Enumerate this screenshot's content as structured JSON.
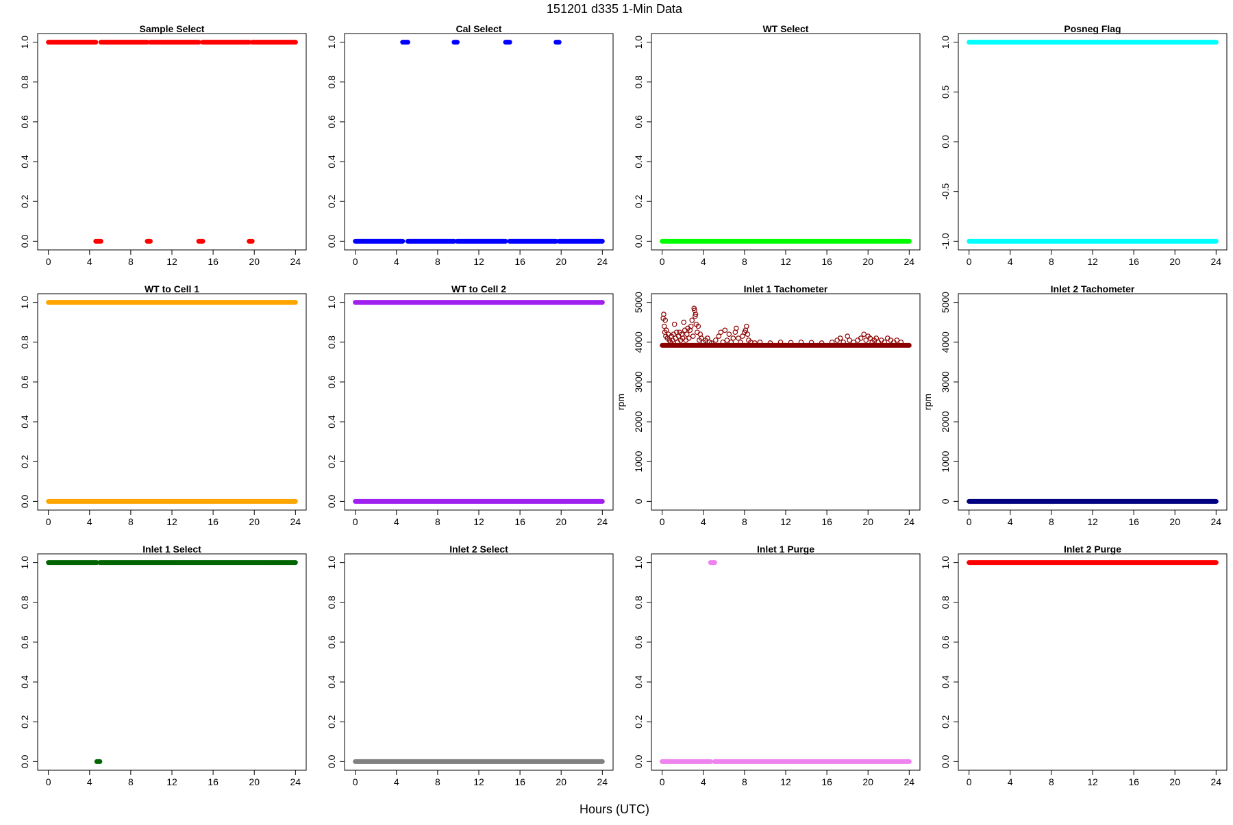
{
  "figure": {
    "title": "151201   d335   1-Min Data",
    "xlabel": "Hours (UTC)"
  },
  "chart_data": [
    {
      "type": "scatter",
      "title": "Sample Select",
      "color": "#ff0000",
      "ylabel": "",
      "xlim": [
        0,
        24
      ],
      "ylim": [
        0,
        1
      ],
      "xticks": [
        0,
        4,
        8,
        12,
        16,
        20,
        24
      ],
      "yticks": [
        0.0,
        0.2,
        0.4,
        0.6,
        0.8,
        1.0
      ],
      "segments": [
        {
          "y": 1,
          "from": 0,
          "to": 4.6
        },
        {
          "y": 0,
          "from": 4.6,
          "to": 5.1
        },
        {
          "y": 1,
          "from": 5.1,
          "to": 9.6
        },
        {
          "y": 0,
          "from": 9.6,
          "to": 9.9
        },
        {
          "y": 1,
          "from": 9.9,
          "to": 14.6
        },
        {
          "y": 0,
          "from": 14.6,
          "to": 15.0
        },
        {
          "y": 1,
          "from": 15.0,
          "to": 19.5
        },
        {
          "y": 0,
          "from": 19.5,
          "to": 19.8
        },
        {
          "y": 1,
          "from": 19.8,
          "to": 24
        }
      ]
    },
    {
      "type": "scatter",
      "title": "Cal Select",
      "color": "#0000ff",
      "ylabel": "",
      "xlim": [
        0,
        24
      ],
      "ylim": [
        0,
        1
      ],
      "xticks": [
        0,
        4,
        8,
        12,
        16,
        20,
        24
      ],
      "yticks": [
        0.0,
        0.2,
        0.4,
        0.6,
        0.8,
        1.0
      ],
      "segments": [
        {
          "y": 0,
          "from": 0,
          "to": 4.6
        },
        {
          "y": 1,
          "from": 4.6,
          "to": 5.1
        },
        {
          "y": 0,
          "from": 5.1,
          "to": 9.6
        },
        {
          "y": 1,
          "from": 9.6,
          "to": 9.9
        },
        {
          "y": 0,
          "from": 9.9,
          "to": 14.6
        },
        {
          "y": 1,
          "from": 14.6,
          "to": 15.0
        },
        {
          "y": 0,
          "from": 15.0,
          "to": 19.5
        },
        {
          "y": 1,
          "from": 19.5,
          "to": 19.8
        },
        {
          "y": 0,
          "from": 19.8,
          "to": 24
        }
      ]
    },
    {
      "type": "scatter",
      "title": "WT Select",
      "color": "#00ff00",
      "ylabel": "",
      "xlim": [
        0,
        24
      ],
      "ylim": [
        0,
        1
      ],
      "xticks": [
        0,
        4,
        8,
        12,
        16,
        20,
        24
      ],
      "yticks": [
        0.0,
        0.2,
        0.4,
        0.6,
        0.8,
        1.0
      ],
      "segments": [
        {
          "y": 0,
          "from": 0,
          "to": 24
        }
      ]
    },
    {
      "type": "scatter",
      "title": "Posneg Flag",
      "color": "#00ffff",
      "ylabel": "",
      "xlim": [
        0,
        24
      ],
      "ylim": [
        -1,
        1
      ],
      "xticks": [
        0,
        4,
        8,
        12,
        16,
        20,
        24
      ],
      "yticks": [
        -1.0,
        -0.5,
        0.0,
        0.5,
        1.0
      ],
      "segments": [
        {
          "y": 1,
          "from": 0,
          "to": 24
        },
        {
          "y": -1,
          "from": 0,
          "to": 24
        }
      ]
    },
    {
      "type": "scatter",
      "title": "WT to Cell 1",
      "color": "#ffa500",
      "ylabel": "",
      "xlim": [
        0,
        24
      ],
      "ylim": [
        0,
        1
      ],
      "xticks": [
        0,
        4,
        8,
        12,
        16,
        20,
        24
      ],
      "yticks": [
        0.0,
        0.2,
        0.4,
        0.6,
        0.8,
        1.0
      ],
      "segments": [
        {
          "y": 1,
          "from": 0,
          "to": 24
        },
        {
          "y": 0,
          "from": 0,
          "to": 24
        }
      ]
    },
    {
      "type": "scatter",
      "title": "WT to Cell 2",
      "color": "#a020f0",
      "ylabel": "",
      "xlim": [
        0,
        24
      ],
      "ylim": [
        0,
        1
      ],
      "xticks": [
        0,
        4,
        8,
        12,
        16,
        20,
        24
      ],
      "yticks": [
        0.0,
        0.2,
        0.4,
        0.6,
        0.8,
        1.0
      ],
      "segments": [
        {
          "y": 1,
          "from": 0,
          "to": 24
        },
        {
          "y": 0,
          "from": 0,
          "to": 24
        }
      ]
    },
    {
      "type": "scatter",
      "title": "Inlet 1 Tachometer",
      "color": "#8b0000",
      "ylabel": "rpm",
      "xlim": [
        0,
        24
      ],
      "ylim": [
        0,
        5000
      ],
      "xticks": [
        0,
        4,
        8,
        12,
        16,
        20,
        24
      ],
      "yticks": [
        0,
        1000,
        2000,
        3000,
        4000,
        5000
      ],
      "segments": [
        {
          "y": 3920,
          "from": 0,
          "to": 24
        }
      ],
      "points": [
        {
          "x": 0.1,
          "y": 4600
        },
        {
          "x": 0.15,
          "y": 4700
        },
        {
          "x": 0.2,
          "y": 4400
        },
        {
          "x": 0.25,
          "y": 4250
        },
        {
          "x": 0.3,
          "y": 4550
        },
        {
          "x": 0.35,
          "y": 4150
        },
        {
          "x": 0.4,
          "y": 4300
        },
        {
          "x": 0.5,
          "y": 4100
        },
        {
          "x": 0.6,
          "y": 4200
        },
        {
          "x": 0.7,
          "y": 4050
        },
        {
          "x": 0.8,
          "y": 4000
        },
        {
          "x": 0.9,
          "y": 4150
        },
        {
          "x": 1.0,
          "y": 4050
        },
        {
          "x": 1.1,
          "y": 4200
        },
        {
          "x": 1.2,
          "y": 4450
        },
        {
          "x": 1.3,
          "y": 4100
        },
        {
          "x": 1.4,
          "y": 4250
        },
        {
          "x": 1.5,
          "y": 4000
        },
        {
          "x": 1.6,
          "y": 4150
        },
        {
          "x": 1.7,
          "y": 4250
        },
        {
          "x": 1.8,
          "y": 4050
        },
        {
          "x": 1.9,
          "y": 4200
        },
        {
          "x": 2.0,
          "y": 4100
        },
        {
          "x": 2.1,
          "y": 4500
        },
        {
          "x": 2.2,
          "y": 4300
        },
        {
          "x": 2.3,
          "y": 4050
        },
        {
          "x": 2.4,
          "y": 4200
        },
        {
          "x": 2.5,
          "y": 4350
        },
        {
          "x": 2.6,
          "y": 4100
        },
        {
          "x": 2.7,
          "y": 4300
        },
        {
          "x": 2.8,
          "y": 4400
        },
        {
          "x": 2.9,
          "y": 4550
        },
        {
          "x": 3.0,
          "y": 4150
        },
        {
          "x": 3.1,
          "y": 4850
        },
        {
          "x": 3.15,
          "y": 4800
        },
        {
          "x": 3.2,
          "y": 4650
        },
        {
          "x": 3.25,
          "y": 4700
        },
        {
          "x": 3.3,
          "y": 4450
        },
        {
          "x": 3.4,
          "y": 4250
        },
        {
          "x": 3.5,
          "y": 4400
        },
        {
          "x": 3.6,
          "y": 4050
        },
        {
          "x": 3.7,
          "y": 4200
        },
        {
          "x": 3.8,
          "y": 4100
        },
        {
          "x": 4.0,
          "y": 4000
        },
        {
          "x": 4.2,
          "y": 4050
        },
        {
          "x": 4.4,
          "y": 4100
        },
        {
          "x": 4.6,
          "y": 4000
        },
        {
          "x": 4.8,
          "y": 3980
        },
        {
          "x": 5.2,
          "y": 4050
        },
        {
          "x": 5.5,
          "y": 4150
        },
        {
          "x": 5.7,
          "y": 4250
        },
        {
          "x": 5.9,
          "y": 4000
        },
        {
          "x": 6.1,
          "y": 4300
        },
        {
          "x": 6.3,
          "y": 4050
        },
        {
          "x": 6.5,
          "y": 4200
        },
        {
          "x": 6.7,
          "y": 4000
        },
        {
          "x": 6.9,
          "y": 4100
        },
        {
          "x": 7.1,
          "y": 4250
        },
        {
          "x": 7.2,
          "y": 4350
        },
        {
          "x": 7.4,
          "y": 4100
        },
        {
          "x": 7.6,
          "y": 4000
        },
        {
          "x": 7.8,
          "y": 4150
        },
        {
          "x": 8.0,
          "y": 4250
        },
        {
          "x": 8.1,
          "y": 4300
        },
        {
          "x": 8.2,
          "y": 4400
        },
        {
          "x": 8.3,
          "y": 4200
        },
        {
          "x": 8.4,
          "y": 4050
        },
        {
          "x": 8.6,
          "y": 4000
        },
        {
          "x": 9.0,
          "y": 3980
        },
        {
          "x": 9.5,
          "y": 4000
        },
        {
          "x": 10.5,
          "y": 3980
        },
        {
          "x": 11.5,
          "y": 4000
        },
        {
          "x": 12.5,
          "y": 3990
        },
        {
          "x": 13.5,
          "y": 4000
        },
        {
          "x": 14.5,
          "y": 3990
        },
        {
          "x": 15.5,
          "y": 3980
        },
        {
          "x": 16.5,
          "y": 4000
        },
        {
          "x": 17.0,
          "y": 4050
        },
        {
          "x": 17.3,
          "y": 4100
        },
        {
          "x": 17.6,
          "y": 4000
        },
        {
          "x": 18.0,
          "y": 4150
        },
        {
          "x": 18.2,
          "y": 4050
        },
        {
          "x": 18.6,
          "y": 4000
        },
        {
          "x": 19.0,
          "y": 4050
        },
        {
          "x": 19.3,
          "y": 4100
        },
        {
          "x": 19.6,
          "y": 4200
        },
        {
          "x": 19.8,
          "y": 4050
        },
        {
          "x": 20.0,
          "y": 4150
        },
        {
          "x": 20.2,
          "y": 4100
        },
        {
          "x": 20.4,
          "y": 4000
        },
        {
          "x": 20.6,
          "y": 4050
        },
        {
          "x": 20.8,
          "y": 4100
        },
        {
          "x": 21.0,
          "y": 4000
        },
        {
          "x": 21.3,
          "y": 4050
        },
        {
          "x": 21.6,
          "y": 4000
        },
        {
          "x": 21.9,
          "y": 4100
        },
        {
          "x": 22.2,
          "y": 4050
        },
        {
          "x": 22.5,
          "y": 4000
        },
        {
          "x": 22.8,
          "y": 4050
        },
        {
          "x": 23.2,
          "y": 4000
        }
      ]
    },
    {
      "type": "scatter",
      "title": "Inlet 2 Tachometer",
      "color": "#000080",
      "ylabel": "rpm",
      "xlim": [
        0,
        24
      ],
      "ylim": [
        0,
        5000
      ],
      "xticks": [
        0,
        4,
        8,
        12,
        16,
        20,
        24
      ],
      "yticks": [
        0,
        1000,
        2000,
        3000,
        4000,
        5000
      ],
      "segments": [
        {
          "y": 0,
          "from": 0,
          "to": 24
        }
      ]
    },
    {
      "type": "scatter",
      "title": "Inlet 1 Select",
      "color": "#006400",
      "ylabel": "",
      "xlim": [
        0,
        24
      ],
      "ylim": [
        0,
        1
      ],
      "xticks": [
        0,
        4,
        8,
        12,
        16,
        20,
        24
      ],
      "yticks": [
        0.0,
        0.2,
        0.4,
        0.6,
        0.8,
        1.0
      ],
      "segments": [
        {
          "y": 1,
          "from": 0,
          "to": 4.7
        },
        {
          "y": 0,
          "from": 4.7,
          "to": 5.0
        },
        {
          "y": 1,
          "from": 5.0,
          "to": 24
        }
      ]
    },
    {
      "type": "scatter",
      "title": "Inlet 2 Select",
      "color": "#808080",
      "ylabel": "",
      "xlim": [
        0,
        24
      ],
      "ylim": [
        0,
        1
      ],
      "xticks": [
        0,
        4,
        8,
        12,
        16,
        20,
        24
      ],
      "yticks": [
        0.0,
        0.2,
        0.4,
        0.6,
        0.8,
        1.0
      ],
      "segments": [
        {
          "y": 0,
          "from": 0,
          "to": 24
        }
      ]
    },
    {
      "type": "scatter",
      "title": "Inlet 1 Purge",
      "color": "#ee82ee",
      "ylabel": "",
      "xlim": [
        0,
        24
      ],
      "ylim": [
        0,
        1
      ],
      "xticks": [
        0,
        4,
        8,
        12,
        16,
        20,
        24
      ],
      "yticks": [
        0.0,
        0.2,
        0.4,
        0.6,
        0.8,
        1.0
      ],
      "segments": [
        {
          "y": 0,
          "from": 0,
          "to": 4.7
        },
        {
          "y": 1,
          "from": 4.7,
          "to": 5.1
        },
        {
          "y": 0,
          "from": 5.1,
          "to": 24
        }
      ]
    },
    {
      "type": "scatter",
      "title": "Inlet 2 Purge",
      "color": "#ff0000",
      "ylabel": "",
      "xlim": [
        0,
        24
      ],
      "ylim": [
        0,
        1
      ],
      "xticks": [
        0,
        4,
        8,
        12,
        16,
        20,
        24
      ],
      "yticks": [
        0.0,
        0.2,
        0.4,
        0.6,
        0.8,
        1.0
      ],
      "segments": [
        {
          "y": 1,
          "from": 0,
          "to": 24
        }
      ]
    }
  ]
}
